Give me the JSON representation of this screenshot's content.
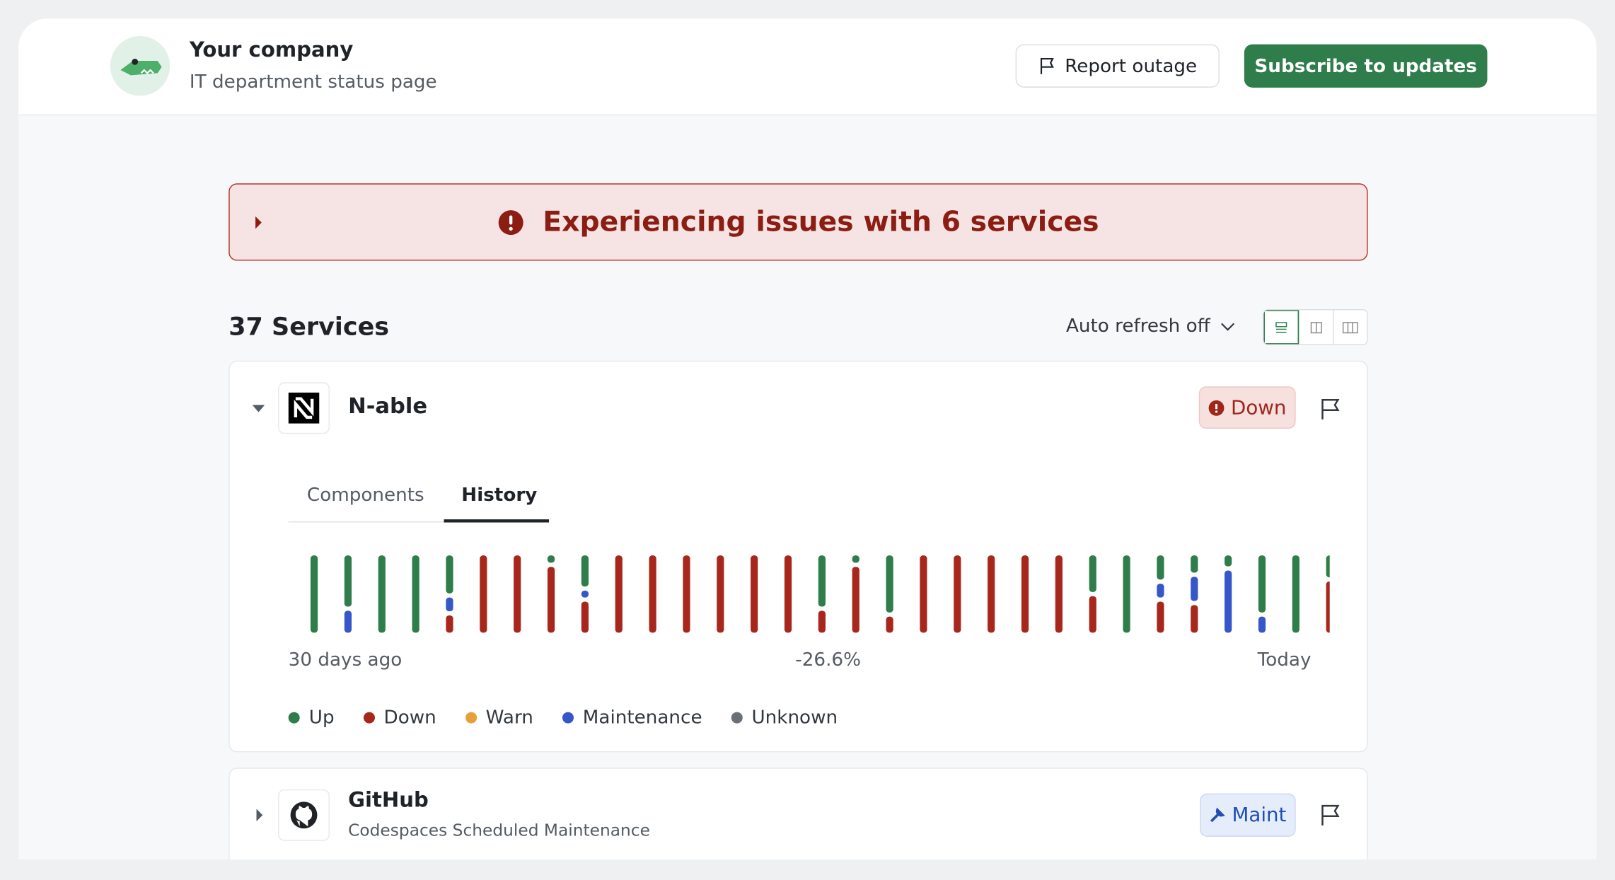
{
  "header": {
    "company": "Your company",
    "subtitle": "IT department status page",
    "report_button": "Report outage",
    "subscribe_button": "Subscribe to updates"
  },
  "banner": {
    "text": "Experiencing issues with 6 services"
  },
  "services_heading": "37 Services",
  "auto_refresh": "Auto refresh off",
  "services": [
    {
      "name": "N-able",
      "status": "Down",
      "tabs": [
        "Components",
        "History"
      ],
      "history": {
        "start_label": "30 days ago",
        "middle_label": "-26.6%",
        "end_label": "Today",
        "legend": [
          {
            "name": "Up",
            "color": "#2f7d4a"
          },
          {
            "name": "Down",
            "color": "#a8271c"
          },
          {
            "name": "Warn",
            "color": "#e5a03a"
          },
          {
            "name": "Maintenance",
            "color": "#3557c8"
          },
          {
            "name": "Unknown",
            "color": "#6b7078"
          }
        ],
        "days": [
          [
            {
              "status": "Up",
              "share": 1
            }
          ],
          [
            {
              "status": "Up",
              "share": 0.7
            },
            {
              "status": "Maintenance",
              "share": 0.3
            }
          ],
          [
            {
              "status": "Up",
              "share": 1
            }
          ],
          [
            {
              "status": "Up",
              "share": 1
            }
          ],
          [
            {
              "status": "Up",
              "share": 0.55
            },
            {
              "status": "Maintenance",
              "share": 0.2
            },
            {
              "status": "Down",
              "share": 0.25
            }
          ],
          [
            {
              "status": "Down",
              "share": 1
            }
          ],
          [
            {
              "status": "Down",
              "share": 1
            }
          ],
          [
            {
              "status": "Up",
              "share": 0.1
            },
            {
              "status": "Down",
              "share": 0.9
            }
          ],
          [
            {
              "status": "Up",
              "share": 0.45
            },
            {
              "status": "Maintenance",
              "share": 0.1
            },
            {
              "status": "Down",
              "share": 0.45
            }
          ],
          [
            {
              "status": "Down",
              "share": 1
            }
          ],
          [
            {
              "status": "Down",
              "share": 1
            }
          ],
          [
            {
              "status": "Down",
              "share": 1
            }
          ],
          [
            {
              "status": "Down",
              "share": 1
            }
          ],
          [
            {
              "status": "Down",
              "share": 1
            }
          ],
          [
            {
              "status": "Down",
              "share": 1
            }
          ],
          [
            {
              "status": "Up",
              "share": 0.7
            },
            {
              "status": "Down",
              "share": 0.3
            }
          ],
          [
            {
              "status": "Up",
              "share": 0.1
            },
            {
              "status": "Down",
              "share": 0.9
            }
          ],
          [
            {
              "status": "Up",
              "share": 0.78
            },
            {
              "status": "Down",
              "share": 0.22
            }
          ],
          [
            {
              "status": "Down",
              "share": 1
            }
          ],
          [
            {
              "status": "Down",
              "share": 1
            }
          ],
          [
            {
              "status": "Down",
              "share": 1
            }
          ],
          [
            {
              "status": "Down",
              "share": 1
            }
          ],
          [
            {
              "status": "Down",
              "share": 1
            }
          ],
          [
            {
              "status": "Up",
              "share": 0.5
            },
            {
              "status": "Down",
              "share": 0.5
            }
          ],
          [
            {
              "status": "Up",
              "share": 1
            }
          ],
          [
            {
              "status": "Up",
              "share": 0.35
            },
            {
              "status": "Maintenance",
              "share": 0.2
            },
            {
              "status": "Down",
              "share": 0.45
            }
          ],
          [
            {
              "status": "Up",
              "share": 0.25
            },
            {
              "status": "Maintenance",
              "share": 0.35
            },
            {
              "status": "Down",
              "share": 0.4
            }
          ],
          [
            {
              "status": "Up",
              "share": 0.15
            },
            {
              "status": "Maintenance",
              "share": 0.85
            }
          ],
          [
            {
              "status": "Up",
              "share": 0.78
            },
            {
              "status": "Maintenance",
              "share": 0.22
            }
          ],
          [
            {
              "status": "Up",
              "share": 1
            }
          ],
          [
            {
              "status": "Up",
              "share": 0.3
            },
            {
              "status": "Down",
              "share": 0.7
            }
          ]
        ]
      }
    },
    {
      "name": "GitHub",
      "description": "Codespaces Scheduled Maintenance",
      "status": "Maint"
    }
  ]
}
